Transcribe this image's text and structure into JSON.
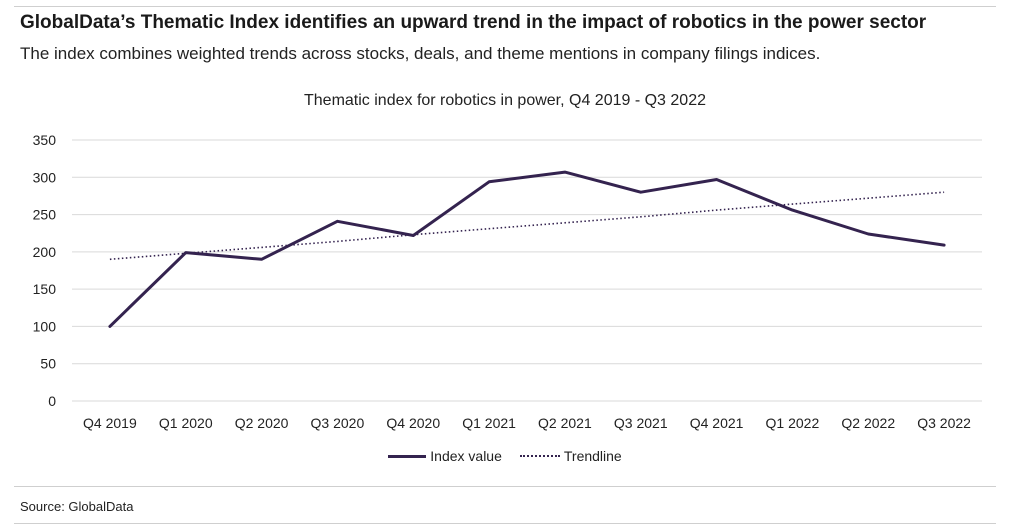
{
  "header": {
    "headline": "GlobalData’s Thematic Index identifies an upward trend in the impact of robotics in the power sector",
    "subhead": "The index combines weighted trends across stocks, deals, and theme mentions in company filings indices."
  },
  "footer": {
    "source": "Source: GlobalData"
  },
  "chart_data": {
    "type": "line",
    "title": "Thematic index for robotics in power, Q4 2019 - Q3 2022",
    "xlabel": "",
    "ylabel": "",
    "categories": [
      "Q4 2019",
      "Q1 2020",
      "Q2 2020",
      "Q3 2020",
      "Q4 2020",
      "Q1 2021",
      "Q2 2021",
      "Q3 2021",
      "Q4 2021",
      "Q1 2022",
      "Q2 2022",
      "Q3 2022"
    ],
    "ylim": [
      0,
      350
    ],
    "yticks": [
      0,
      50,
      100,
      150,
      200,
      250,
      300,
      350
    ],
    "grid": true,
    "legend_position": "bottom",
    "series": [
      {
        "name": "Index value",
        "style": "solid",
        "color": "#34234f",
        "values": [
          100,
          199,
          190,
          241,
          222,
          294,
          307,
          280,
          297,
          256,
          224,
          209
        ]
      },
      {
        "name": "Trendline",
        "style": "dotted",
        "color": "#34234f",
        "values": [
          190,
          198,
          206,
          214,
          223,
          231,
          239,
          247,
          256,
          264,
          272,
          280
        ]
      }
    ]
  }
}
